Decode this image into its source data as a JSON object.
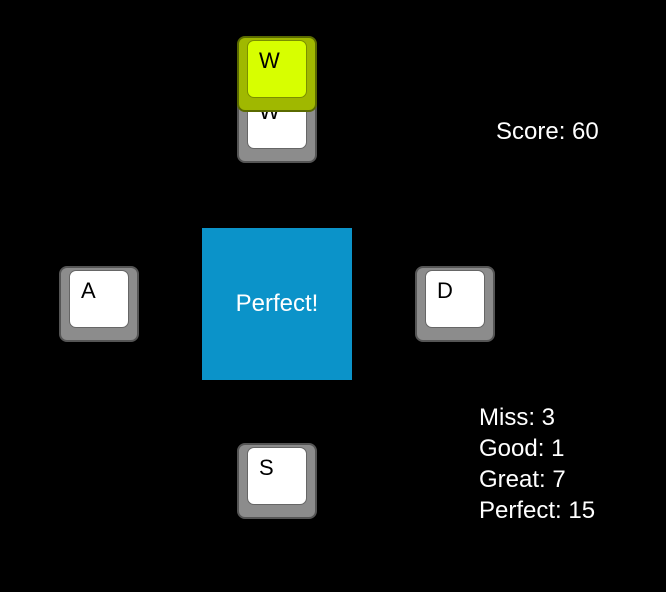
{
  "keys": {
    "w_lower": "W",
    "w_upper": "W",
    "a": "A",
    "d": "D",
    "s": "S"
  },
  "judgement": "Perfect!",
  "score": {
    "label": "Score:",
    "value": "60"
  },
  "stats": [
    {
      "label": "Miss:",
      "value": "3"
    },
    {
      "label": "Good:",
      "value": "1"
    },
    {
      "label": "Great:",
      "value": "7"
    },
    {
      "label": "Perfect:",
      "value": "15"
    }
  ],
  "colors": {
    "background": "#000000",
    "center_box": "#0b93c9",
    "active_key": "#d7ff00",
    "key_face": "#ffffff",
    "key_side": "#8c8c8c"
  }
}
